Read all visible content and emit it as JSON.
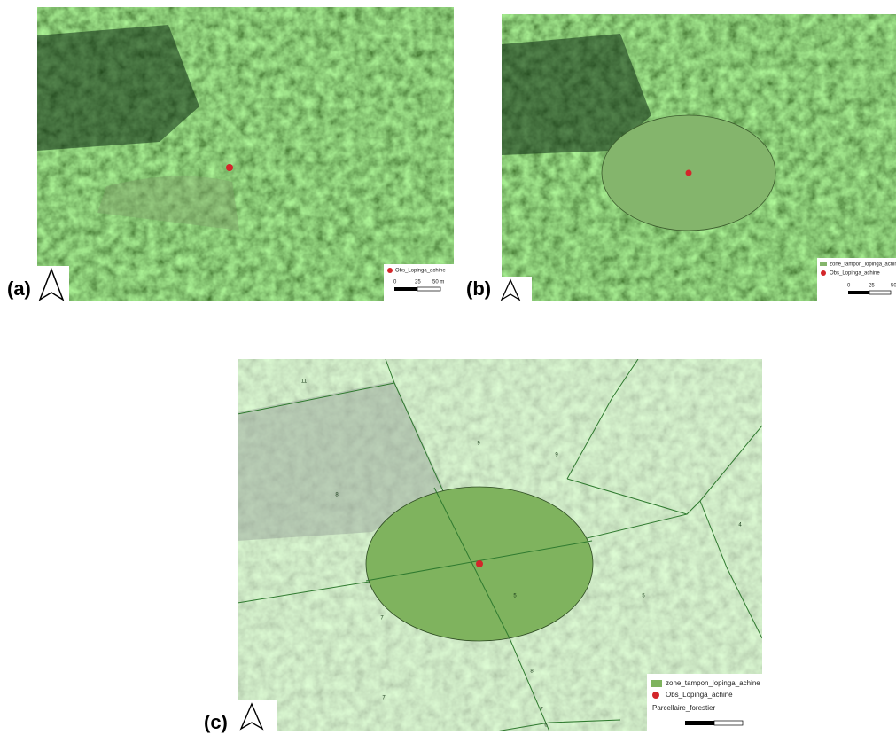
{
  "panels": [
    {
      "label": "(a)",
      "legend": [
        "Obs_Lopinga_achine"
      ],
      "scale_labels": [
        "0",
        "25",
        "50 m"
      ]
    },
    {
      "label": "(b)",
      "legend": [
        "zone_tampon_lopinga_achine",
        "Obs_Lopinga_achine"
      ],
      "scale_labels": [
        "0",
        "25",
        "50"
      ]
    },
    {
      "label": "(c)",
      "legend": [
        "zone_tampon_lopinga_achine",
        "Obs_Lopinga_achine",
        "Parcellaire_forestier"
      ],
      "parcel_labels": [
        "11",
        "9",
        "9",
        "8",
        "4",
        "5",
        "5",
        "7",
        "8",
        "7",
        "7",
        "6"
      ]
    }
  ]
}
